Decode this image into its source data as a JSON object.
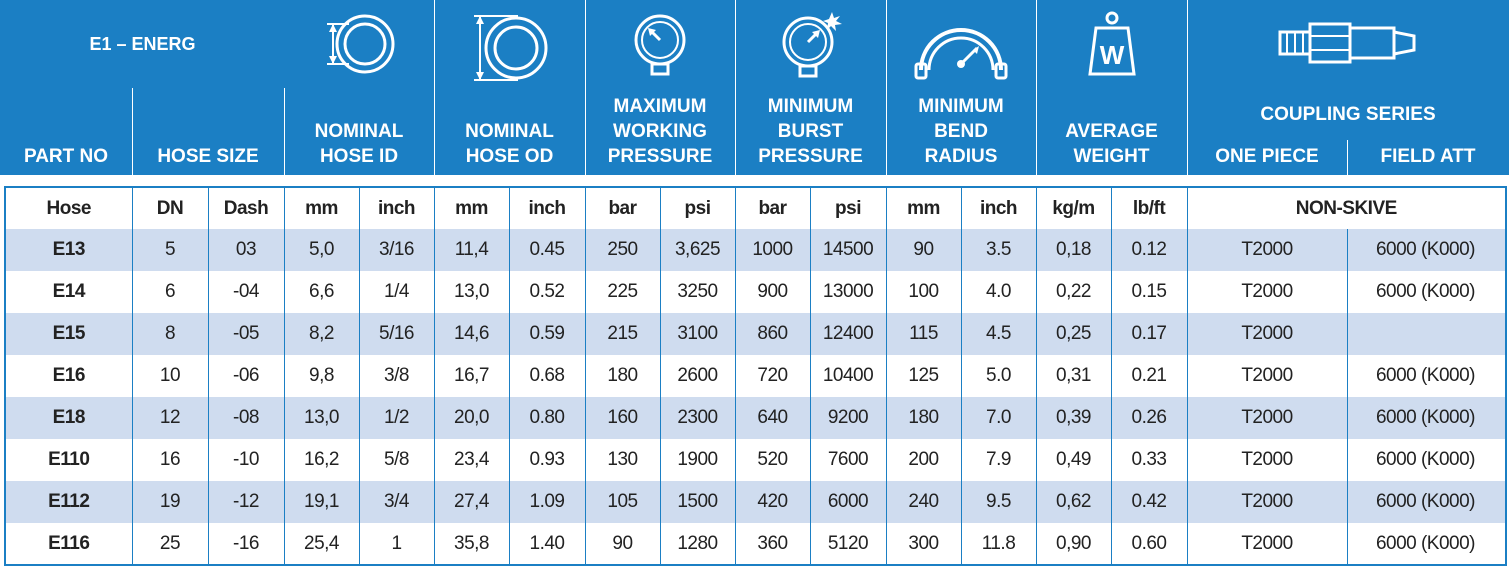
{
  "title": "E1 – ENERG",
  "header": {
    "part_no": "PART NO",
    "hose_size": "HOSE SIZE",
    "nominal_hose_id": [
      "NOMINAL",
      "HOSE ID"
    ],
    "nominal_hose_od": [
      "NOMINAL",
      "HOSE OD"
    ],
    "max_working_pressure": [
      "MAXIMUM",
      "WORKING",
      "PRESSURE"
    ],
    "min_burst_pressure": [
      "MINIMUM",
      "BURST",
      "PRESSURE"
    ],
    "min_bend_radius": [
      "MINIMUM",
      "BEND",
      "RADIUS"
    ],
    "average_weight": [
      "AVERAGE",
      "WEIGHT"
    ],
    "coupling_series": "COUPLING SERIES",
    "one_piece": "ONE PIECE",
    "field_att": "FIELD ATT",
    "weight_icon_letter": "W"
  },
  "units": [
    "Hose",
    "DN",
    "Dash",
    "mm",
    "inch",
    "mm",
    "inch",
    "bar",
    "psi",
    "bar",
    "psi",
    "mm",
    "inch",
    "kg/m",
    "lb/ft",
    "NON-SKIVE"
  ],
  "rows": [
    [
      "E13",
      "5",
      "03",
      "5,0",
      "3/16",
      "11,4",
      "0.45",
      "250",
      "3,625",
      "1000",
      "14500",
      "90",
      "3.5",
      "0,18",
      "0.12",
      "T2000",
      "6000 (K000)"
    ],
    [
      "E14",
      "6",
      "-04",
      "6,6",
      "1/4",
      "13,0",
      "0.52",
      "225",
      "3250",
      "900",
      "13000",
      "100",
      "4.0",
      "0,22",
      "0.15",
      "T2000",
      "6000 (K000)"
    ],
    [
      "E15",
      "8",
      "-05",
      "8,2",
      "5/16",
      "14,6",
      "0.59",
      "215",
      "3100",
      "860",
      "12400",
      "115",
      "4.5",
      "0,25",
      "0.17",
      "T2000",
      ""
    ],
    [
      "E16",
      "10",
      "-06",
      "9,8",
      "3/8",
      "16,7",
      "0.68",
      "180",
      "2600",
      "720",
      "10400",
      "125",
      "5.0",
      "0,31",
      "0.21",
      "T2000",
      "6000 (K000)"
    ],
    [
      "E18",
      "12",
      "-08",
      "13,0",
      "1/2",
      "20,0",
      "0.80",
      "160",
      "2300",
      "640",
      "9200",
      "180",
      "7.0",
      "0,39",
      "0.26",
      "T2000",
      "6000 (K000)"
    ],
    [
      "E110",
      "16",
      "-10",
      "16,2",
      "5/8",
      "23,4",
      "0.93",
      "130",
      "1900",
      "520",
      "7600",
      "200",
      "7.9",
      "0,49",
      "0.33",
      "T2000",
      "6000 (K000)"
    ],
    [
      "E112",
      "19",
      "-12",
      "19,1",
      "3/4",
      "27,4",
      "1.09",
      "105",
      "1500",
      "420",
      "6000",
      "240",
      "9.5",
      "0,62",
      "0.42",
      "T2000",
      "6000 (K000)"
    ],
    [
      "E116",
      "25",
      "-16",
      "25,4",
      "1",
      "35,8",
      "1.40",
      "90",
      "1280",
      "360",
      "5120",
      "300",
      "11.8",
      "0,90",
      "0.60",
      "T2000",
      "6000 (K000)"
    ]
  ]
}
